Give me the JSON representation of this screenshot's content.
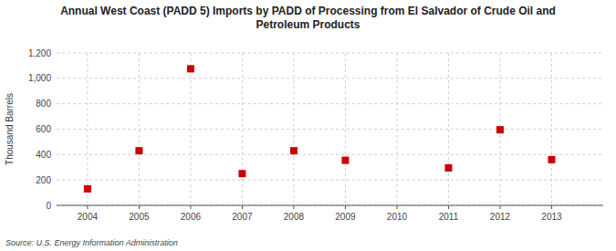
{
  "chart_data": {
    "type": "scatter",
    "title": "Annual West Coast (PADD 5) Imports by PADD of Processing from El Salvador of Crude Oil and\nPetroleum Products",
    "ylabel": "Thousand Barrels",
    "annotations": [
      "Source: U.S. Energy Information Administration"
    ],
    "x": [
      2004,
      2005,
      2006,
      2007,
      2008,
      2009,
      2011,
      2012,
      2013
    ],
    "values": [
      130,
      430,
      1075,
      250,
      430,
      355,
      295,
      595,
      360
    ],
    "xlim": [
      2003.4,
      2014.0
    ],
    "xticks": [
      2004,
      2005,
      2006,
      2007,
      2008,
      2009,
      2010,
      2011,
      2012,
      2013
    ],
    "ylim": [
      0,
      1200
    ],
    "yticks": [
      0,
      200,
      400,
      600,
      800,
      {
        "value": 1000,
        "label": "1,000"
      },
      {
        "value": 1200,
        "label": "1,200"
      }
    ],
    "color": "#cc0000",
    "marker": "square",
    "grid": true
  }
}
